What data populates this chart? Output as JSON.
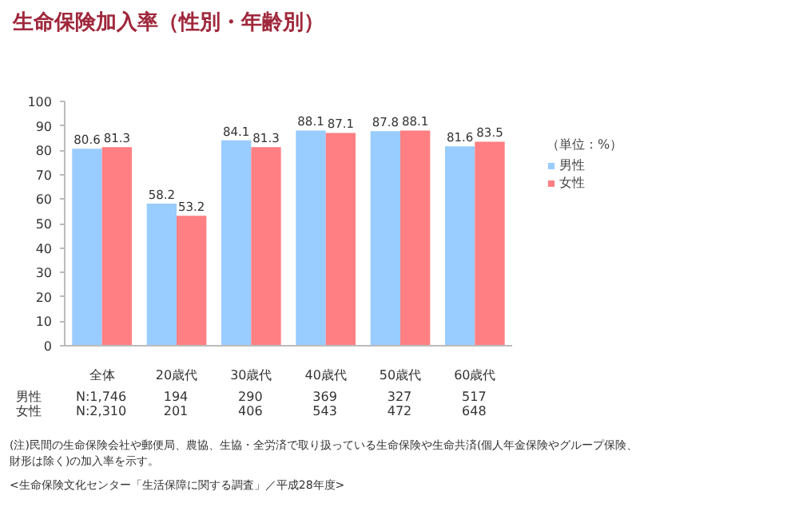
{
  "chart_data": {
    "type": "bar",
    "title": "生命保険加入率（性別・年齢別）",
    "legend_title": "（単位：%）",
    "categories": [
      "全体",
      "20歳代",
      "30歳代",
      "40歳代",
      "50歳代",
      "60歳代"
    ],
    "series": [
      {
        "name": "男性",
        "color": "#99ccff",
        "values": [
          80.6,
          58.2,
          84.1,
          88.1,
          87.8,
          81.6
        ]
      },
      {
        "name": "女性",
        "color": "#ff7f82",
        "values": [
          81.3,
          53.2,
          81.3,
          87.1,
          88.1,
          83.5
        ]
      }
    ],
    "ylim": [
      0,
      100
    ],
    "yticks": [
      0,
      10,
      20,
      30,
      40,
      50,
      60,
      70,
      80,
      90,
      100
    ],
    "grid": false,
    "legend": "top right",
    "data_labels": true,
    "annotations": [
      "男性",
      "女性",
      "N:1,746\nN:2,310",
      "194\n201",
      "290\n406",
      "369\n543",
      "327\n472",
      "517\n648",
      "(注)民間の生命保険会社や郵便局、農協、生協・全労済で取り扱っている生命保険や生命共済(個人年金保険やグループ保険、",
      "財形は除く)の加入率を示す。",
      "<生命保険文化センター「生活保障に関する調査」／平成28年度>"
    ]
  }
}
